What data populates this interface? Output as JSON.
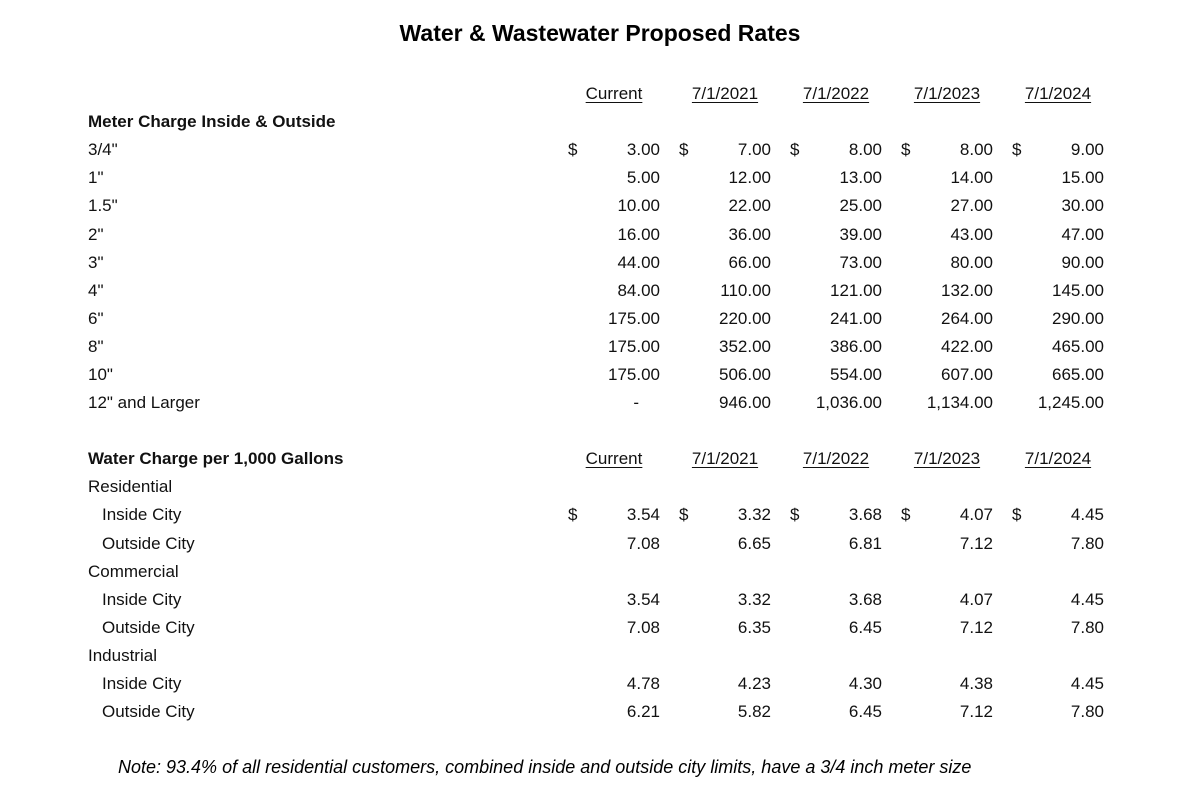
{
  "title": "Water & Wastewater Proposed Rates",
  "columns": [
    "Current",
    "7/1/2021",
    "7/1/2022",
    "7/1/2023",
    "7/1/2024"
  ],
  "currency_symbol": "$",
  "sections": [
    {
      "label": "Meter Charge Inside & Outside",
      "label_inline_with_headers": false,
      "rows": [
        {
          "label": "3/4\"",
          "indent": false,
          "dollar": true,
          "values": [
            "3.00",
            "7.00",
            "8.00",
            "8.00",
            "9.00"
          ]
        },
        {
          "label": "1\"",
          "indent": false,
          "dollar": false,
          "values": [
            "5.00",
            "12.00",
            "13.00",
            "14.00",
            "15.00"
          ]
        },
        {
          "label": "1.5\"",
          "indent": false,
          "dollar": false,
          "values": [
            "10.00",
            "22.00",
            "25.00",
            "27.00",
            "30.00"
          ]
        },
        {
          "label": "2\"",
          "indent": false,
          "dollar": false,
          "values": [
            "16.00",
            "36.00",
            "39.00",
            "43.00",
            "47.00"
          ]
        },
        {
          "label": "3\"",
          "indent": false,
          "dollar": false,
          "values": [
            "44.00",
            "66.00",
            "73.00",
            "80.00",
            "90.00"
          ]
        },
        {
          "label": "4\"",
          "indent": false,
          "dollar": false,
          "values": [
            "84.00",
            "110.00",
            "121.00",
            "132.00",
            "145.00"
          ]
        },
        {
          "label": "6\"",
          "indent": false,
          "dollar": false,
          "values": [
            "175.00",
            "220.00",
            "241.00",
            "264.00",
            "290.00"
          ]
        },
        {
          "label": "8\"",
          "indent": false,
          "dollar": false,
          "values": [
            "175.00",
            "352.00",
            "386.00",
            "422.00",
            "465.00"
          ]
        },
        {
          "label": "10\"",
          "indent": false,
          "dollar": false,
          "values": [
            "175.00",
            "506.00",
            "554.00",
            "607.00",
            "665.00"
          ]
        },
        {
          "label": "12\" and Larger",
          "indent": false,
          "dollar": false,
          "values": [
            "-",
            "946.00",
            "1,036.00",
            "1,134.00",
            "1,245.00"
          ]
        }
      ]
    },
    {
      "label": "Water Charge per 1,000 Gallons",
      "label_inline_with_headers": true,
      "rows": [
        {
          "label": "Residential",
          "subheader": true
        },
        {
          "label": "Inside City",
          "indent": true,
          "dollar": true,
          "values": [
            "3.54",
            "3.32",
            "3.68",
            "4.07",
            "4.45"
          ]
        },
        {
          "label": "Outside City",
          "indent": true,
          "dollar": false,
          "values": [
            "7.08",
            "6.65",
            "6.81",
            "7.12",
            "7.80"
          ]
        },
        {
          "label": "Commercial",
          "subheader": true
        },
        {
          "label": "Inside City",
          "indent": true,
          "dollar": false,
          "values": [
            "3.54",
            "3.32",
            "3.68",
            "4.07",
            "4.45"
          ]
        },
        {
          "label": "Outside City",
          "indent": true,
          "dollar": false,
          "values": [
            "7.08",
            "6.35",
            "6.45",
            "7.12",
            "7.80"
          ]
        },
        {
          "label": "Industrial",
          "subheader": true
        },
        {
          "label": "Inside City",
          "indent": true,
          "dollar": false,
          "values": [
            "4.78",
            "4.23",
            "4.30",
            "4.38",
            "4.45"
          ]
        },
        {
          "label": "Outside City",
          "indent": true,
          "dollar": false,
          "values": [
            "6.21",
            "5.82",
            "6.45",
            "7.12",
            "7.80"
          ]
        }
      ]
    }
  ],
  "note": "Note: 93.4% of all residential customers, combined inside and outside city limits, have a 3/4 inch meter size"
}
